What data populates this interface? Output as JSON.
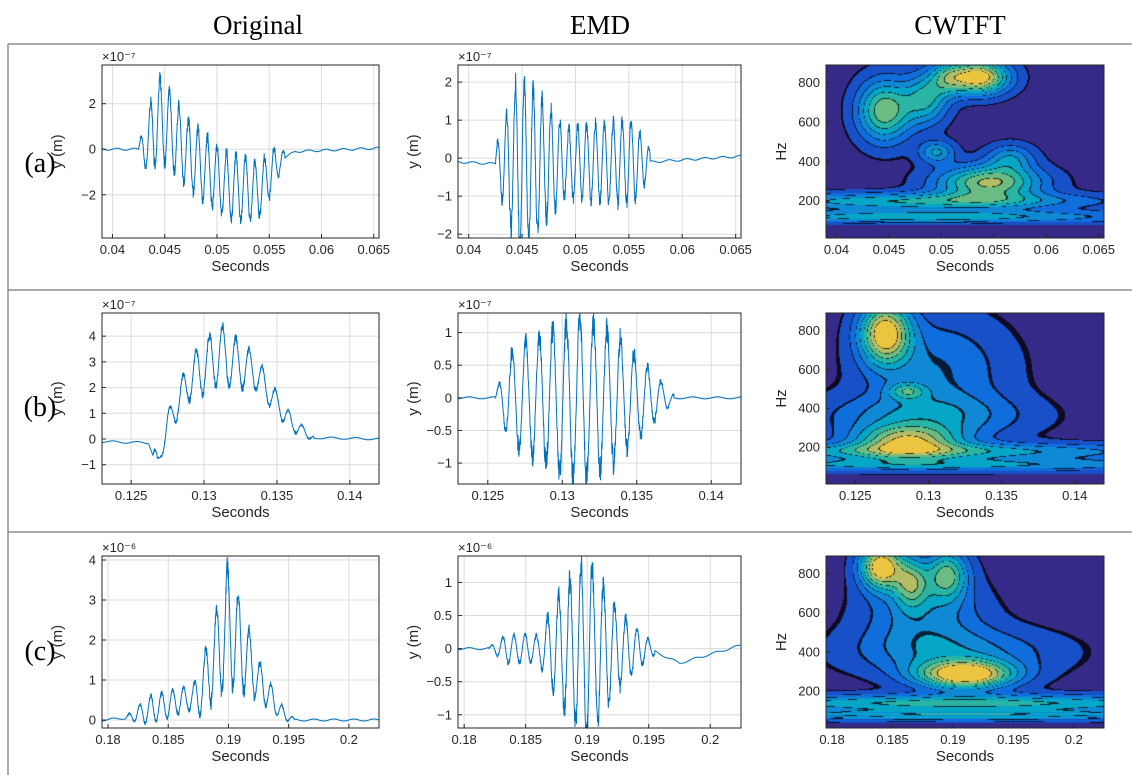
{
  "column_headers": [
    "Original",
    "EMD",
    "CWTFT"
  ],
  "row_labels": [
    "(a)",
    "(b)",
    "(c)"
  ],
  "colors": {
    "line": "#0072BD",
    "grid": "#dcdcdc",
    "frame": "#262626",
    "divider": "#777777"
  },
  "colormap": "parula",
  "chart_data": [
    {
      "type": "line",
      "row": "(a)",
      "column": "Original",
      "xlabel": "Seconds",
      "ylabel": "y (m)",
      "exponent": "×10⁻⁷",
      "xlim": [
        0.039,
        0.0655
      ],
      "ylim": [
        -3.9,
        3.7
      ],
      "xticks": [
        0.04,
        0.045,
        0.05,
        0.055,
        0.06,
        0.065
      ],
      "xtick_labels": [
        "0.04",
        "0.045",
        "0.05",
        "0.055",
        "0.06",
        "0.065"
      ],
      "yticks": [
        -2,
        0,
        2
      ],
      "ytick_labels": [
        "−2",
        "0",
        "2"
      ],
      "grid": true,
      "envelope": {
        "t_start": 0.0425,
        "t_end": 0.0565,
        "osc_freq_hz": 1100,
        "amplitude": [
          [
            0.0425,
            0.3
          ],
          [
            0.044,
            1.8
          ],
          [
            0.047,
            1.5
          ],
          [
            0.05,
            1.4
          ],
          [
            0.053,
            1.4
          ],
          [
            0.0555,
            0.9
          ],
          [
            0.0565,
            0.2
          ]
        ],
        "baseline": [
          [
            0.039,
            0
          ],
          [
            0.043,
            0
          ],
          [
            0.0445,
            1.4
          ],
          [
            0.0475,
            -0.3
          ],
          [
            0.051,
            -1.6
          ],
          [
            0.054,
            -1.8
          ],
          [
            0.056,
            -0.5
          ],
          [
            0.0575,
            -0.1
          ],
          [
            0.0655,
            0.05
          ]
        ]
      }
    },
    {
      "type": "line",
      "row": "(a)",
      "column": "EMD",
      "xlabel": "Seconds",
      "ylabel": "y (m)",
      "exponent": "×10⁻⁷",
      "xlim": [
        0.039,
        0.0655
      ],
      "ylim": [
        -2.1,
        2.45
      ],
      "xticks": [
        0.04,
        0.045,
        0.05,
        0.055,
        0.06,
        0.065
      ],
      "xtick_labels": [
        "0.04",
        "0.045",
        "0.05",
        "0.055",
        "0.06",
        "0.065"
      ],
      "yticks": [
        -2,
        -1,
        0,
        1,
        2
      ],
      "ytick_labels": [
        "−2",
        "−1",
        "0",
        "1",
        "2"
      ],
      "grid": true,
      "envelope": {
        "t_start": 0.0425,
        "t_end": 0.057,
        "osc_freq_hz": 1200,
        "amplitude": [
          [
            0.0425,
            0.4
          ],
          [
            0.0445,
            2.2
          ],
          [
            0.0465,
            1.8
          ],
          [
            0.049,
            0.9
          ],
          [
            0.052,
            1.0
          ],
          [
            0.0555,
            1.1
          ],
          [
            0.057,
            0.3
          ]
        ],
        "baseline": [
          [
            0.039,
            -0.1
          ],
          [
            0.0425,
            -0.15
          ],
          [
            0.057,
            -0.1
          ],
          [
            0.0655,
            0.05
          ]
        ]
      }
    },
    {
      "type": "contour",
      "row": "(a)",
      "column": "CWTFT",
      "xlabel": "Seconds",
      "ylabel": "Hz",
      "xlim": [
        0.039,
        0.0655
      ],
      "ylim": [
        10,
        890
      ],
      "xticks": [
        0.04,
        0.045,
        0.05,
        0.055,
        0.06,
        0.065
      ],
      "xtick_labels": [
        "0.04",
        "0.045",
        "0.05",
        "0.055",
        "0.06",
        "0.065"
      ],
      "yticks": [
        200,
        400,
        600,
        800
      ],
      "ytick_labels": [
        "200",
        "400",
        "600",
        "800"
      ],
      "grid": false,
      "background": 0.05,
      "blobs": [
        [
          0.0545,
          295,
          0.0035,
          60,
          0.75
        ],
        [
          0.0535,
          830,
          0.002,
          60,
          0.95
        ],
        [
          0.0445,
          660,
          0.0018,
          110,
          0.7
        ],
        [
          0.0485,
          720,
          0.0015,
          90,
          0.5
        ],
        [
          0.0495,
          450,
          0.0012,
          40,
          0.4
        ],
        [
          0.0565,
          420,
          0.0016,
          50,
          0.35
        ],
        [
          0.0505,
          830,
          0.0012,
          60,
          0.35
        ],
        [
          0.0475,
          200,
          0.012,
          30,
          0.5
        ],
        [
          0.048,
          120,
          0.016,
          25,
          0.45
        ]
      ]
    },
    {
      "type": "line",
      "row": "(b)",
      "column": "Original",
      "xlabel": "Seconds",
      "ylabel": "y (m)",
      "exponent": "×10⁻⁷",
      "xlim": [
        0.123,
        0.142
      ],
      "ylim": [
        -1.75,
        4.9
      ],
      "xticks": [
        0.125,
        0.13,
        0.135,
        0.14
      ],
      "xtick_labels": [
        "0.125",
        "0.13",
        "0.135",
        "0.14"
      ],
      "yticks": [
        -1,
        0,
        1,
        2,
        3,
        4
      ],
      "ytick_labels": [
        "−1",
        "0",
        "1",
        "2",
        "3",
        "4"
      ],
      "grid": true,
      "envelope": {
        "t_start": 0.1265,
        "t_end": 0.1375,
        "osc_freq_hz": 1100,
        "amplitude": [
          [
            0.1265,
            0.6
          ],
          [
            0.127,
            0.3
          ],
          [
            0.129,
            0.8
          ],
          [
            0.131,
            1.2
          ],
          [
            0.134,
            0.6
          ],
          [
            0.1375,
            0.1
          ]
        ],
        "baseline": [
          [
            0.123,
            -0.1
          ],
          [
            0.1262,
            -0.15
          ],
          [
            0.1268,
            -1.1
          ],
          [
            0.1275,
            0.6
          ],
          [
            0.129,
            2.3
          ],
          [
            0.131,
            3.3
          ],
          [
            0.1335,
            2.6
          ],
          [
            0.136,
            0.6
          ],
          [
            0.1375,
            0.05
          ],
          [
            0.142,
            0
          ]
        ]
      }
    },
    {
      "type": "line",
      "row": "(b)",
      "column": "EMD",
      "xlabel": "Seconds",
      "ylabel": "y (m)",
      "exponent": "×10⁻⁷",
      "xlim": [
        0.123,
        0.142
      ],
      "ylim": [
        -1.32,
        1.3
      ],
      "xticks": [
        0.125,
        0.13,
        0.135,
        0.14
      ],
      "xtick_labels": [
        "0.125",
        "0.13",
        "0.135",
        "0.14"
      ],
      "yticks": [
        -1,
        -0.5,
        0,
        0.5,
        1
      ],
      "ytick_labels": [
        "−1",
        "−0.5",
        "0",
        "0.5",
        "1"
      ],
      "grid": true,
      "envelope": {
        "t_start": 0.1255,
        "t_end": 0.1375,
        "osc_freq_hz": 1100,
        "amplitude": [
          [
            0.1255,
            0.05
          ],
          [
            0.1265,
            0.7
          ],
          [
            0.128,
            0.9
          ],
          [
            0.131,
            1.25
          ],
          [
            0.1335,
            1.0
          ],
          [
            0.1375,
            0.05
          ]
        ],
        "baseline": [
          [
            0.123,
            0
          ],
          [
            0.142,
            0
          ]
        ]
      }
    },
    {
      "type": "contour",
      "row": "(b)",
      "column": "CWTFT",
      "xlabel": "Seconds",
      "ylabel": "Hz",
      "xlim": [
        0.123,
        0.142
      ],
      "ylim": [
        10,
        890
      ],
      "xticks": [
        0.125,
        0.13,
        0.135,
        0.14
      ],
      "xtick_labels": [
        "0.125",
        "0.13",
        "0.135",
        "0.14"
      ],
      "yticks": [
        200,
        400,
        600,
        800
      ],
      "ytick_labels": [
        "200",
        "400",
        "600",
        "800"
      ],
      "grid": false,
      "background": 0.05,
      "blobs": [
        [
          0.127,
          790,
          0.0012,
          110,
          0.9
        ],
        [
          0.1285,
          235,
          0.0025,
          55,
          0.7
        ],
        [
          0.1285,
          490,
          0.0009,
          30,
          0.35
        ],
        [
          0.1305,
          600,
          0.0035,
          200,
          0.28
        ],
        [
          0.1295,
          360,
          0.005,
          80,
          0.3
        ],
        [
          0.13,
          180,
          0.012,
          30,
          0.45
        ],
        [
          0.13,
          110,
          0.015,
          25,
          0.4
        ]
      ]
    },
    {
      "type": "line",
      "row": "(c)",
      "column": "Original",
      "xlabel": "Seconds",
      "ylabel": "y (m)",
      "exponent": "×10⁻⁶",
      "xlim": [
        0.1795,
        0.2025
      ],
      "ylim": [
        -0.2,
        4.1
      ],
      "xticks": [
        0.18,
        0.185,
        0.19,
        0.195,
        0.2
      ],
      "xtick_labels": [
        "0.18",
        "0.185",
        "0.19",
        "0.195",
        "0.2"
      ],
      "yticks": [
        0,
        1,
        2,
        3,
        4
      ],
      "ytick_labels": [
        "0",
        "1",
        "2",
        "3",
        "4"
      ],
      "grid": true,
      "envelope": {
        "t_start": 0.1815,
        "t_end": 0.1955,
        "osc_freq_hz": 1100,
        "amplitude": [
          [
            0.1815,
            0.05
          ],
          [
            0.1835,
            0.35
          ],
          [
            0.187,
            0.3
          ],
          [
            0.19,
            1.5
          ],
          [
            0.1925,
            0.5
          ],
          [
            0.1955,
            0.02
          ]
        ],
        "baseline": [
          [
            0.1795,
            0
          ],
          [
            0.1815,
            0.05
          ],
          [
            0.185,
            0.4
          ],
          [
            0.1875,
            0.6
          ],
          [
            0.19,
            2.4
          ],
          [
            0.1925,
            1.0
          ],
          [
            0.1945,
            0.15
          ],
          [
            0.1955,
            0
          ],
          [
            0.2025,
            0
          ]
        ]
      }
    },
    {
      "type": "line",
      "row": "(c)",
      "column": "EMD",
      "xlabel": "Seconds",
      "ylabel": "y (m)",
      "exponent": "×10⁻⁶",
      "xlim": [
        0.1795,
        0.2025
      ],
      "ylim": [
        -1.2,
        1.4
      ],
      "xticks": [
        0.18,
        0.185,
        0.19,
        0.195,
        0.2
      ],
      "xtick_labels": [
        "0.18",
        "0.185",
        "0.19",
        "0.195",
        "0.2"
      ],
      "yticks": [
        -1,
        -0.5,
        0,
        0.5,
        1
      ],
      "ytick_labels": [
        "−1",
        "−0.5",
        "0",
        "0.5",
        "1"
      ],
      "grid": true,
      "envelope": {
        "t_start": 0.182,
        "t_end": 0.1955,
        "osc_freq_hz": 1100,
        "amplitude": [
          [
            0.182,
            0.02
          ],
          [
            0.1835,
            0.22
          ],
          [
            0.186,
            0.2
          ],
          [
            0.188,
            0.9
          ],
          [
            0.19,
            1.35
          ],
          [
            0.1925,
            0.6
          ],
          [
            0.1955,
            0.05
          ]
        ],
        "baseline": [
          [
            0.1795,
            0
          ],
          [
            0.195,
            0
          ],
          [
            0.1975,
            -0.22
          ],
          [
            0.2025,
            0.05
          ]
        ]
      }
    },
    {
      "type": "contour",
      "row": "(c)",
      "column": "CWTFT",
      "xlabel": "Seconds",
      "ylabel": "Hz",
      "xlim": [
        0.1795,
        0.2025
      ],
      "ylim": [
        10,
        890
      ],
      "xticks": [
        0.18,
        0.185,
        0.19,
        0.195,
        0.2
      ],
      "xtick_labels": [
        "0.18",
        "0.185",
        "0.19",
        "0.195",
        "0.2"
      ],
      "yticks": [
        200,
        400,
        600,
        800
      ],
      "ytick_labels": [
        "200",
        "400",
        "600",
        "800"
      ],
      "grid": false,
      "background": 0.05,
      "blobs": [
        [
          0.191,
          285,
          0.0028,
          50,
          0.95
        ],
        [
          0.184,
          840,
          0.0012,
          80,
          0.95
        ],
        [
          0.1865,
          760,
          0.001,
          90,
          0.55
        ],
        [
          0.1895,
          800,
          0.0012,
          90,
          0.6
        ],
        [
          0.1875,
          600,
          0.0035,
          140,
          0.3
        ],
        [
          0.19,
          400,
          0.006,
          90,
          0.3
        ],
        [
          0.191,
          140,
          0.016,
          30,
          0.55
        ],
        [
          0.191,
          75,
          0.016,
          20,
          0.5
        ]
      ]
    }
  ]
}
